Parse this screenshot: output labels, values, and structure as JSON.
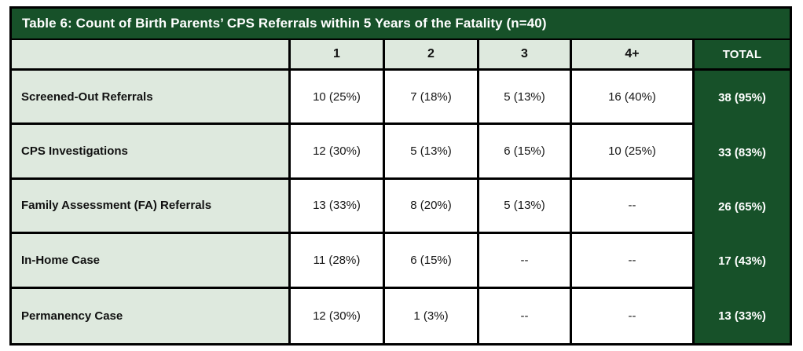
{
  "table": {
    "title": "Table 6: Count of Birth Parents’ CPS Referrals within 5 Years of the Fatality (n=40)",
    "corner_label": "",
    "column_headers": {
      "c1": "1",
      "c2": "2",
      "c3": "3",
      "c4": "4+",
      "total": "TOTAL"
    },
    "rows": [
      {
        "label": "Screened-Out Referrals",
        "c1": "10 (25%)",
        "c2": "7 (18%)",
        "c3": "5 (13%)",
        "c4": "16 (40%)",
        "total": "38 (95%)"
      },
      {
        "label": "CPS Investigations",
        "c1": "12 (30%)",
        "c2": "5 (13%)",
        "c3": "6 (15%)",
        "c4": "10 (25%)",
        "total": "33 (83%)"
      },
      {
        "label": "Family Assessment (FA) Referrals",
        "c1": "13 (33%)",
        "c2": "8 (20%)",
        "c3": "5 (13%)",
        "c4": "--",
        "total": "26 (65%)"
      },
      {
        "label": "In-Home Case",
        "c1": "11 (28%)",
        "c2": "6 (15%)",
        "c3": "--",
        "c4": "--",
        "total": "17 (43%)"
      },
      {
        "label": "Permanency Case",
        "c1": "12 (30%)",
        "c2": "1 (3%)",
        "c3": "--",
        "c4": "--",
        "total": "13 (33%)"
      }
    ],
    "colors": {
      "header_dark_green": "#175129",
      "label_light_green": "#DEE9DE",
      "border_black": "#000000",
      "data_cell_white": "#FFFFFF",
      "title_text_white": "#FFFFFF"
    }
  }
}
